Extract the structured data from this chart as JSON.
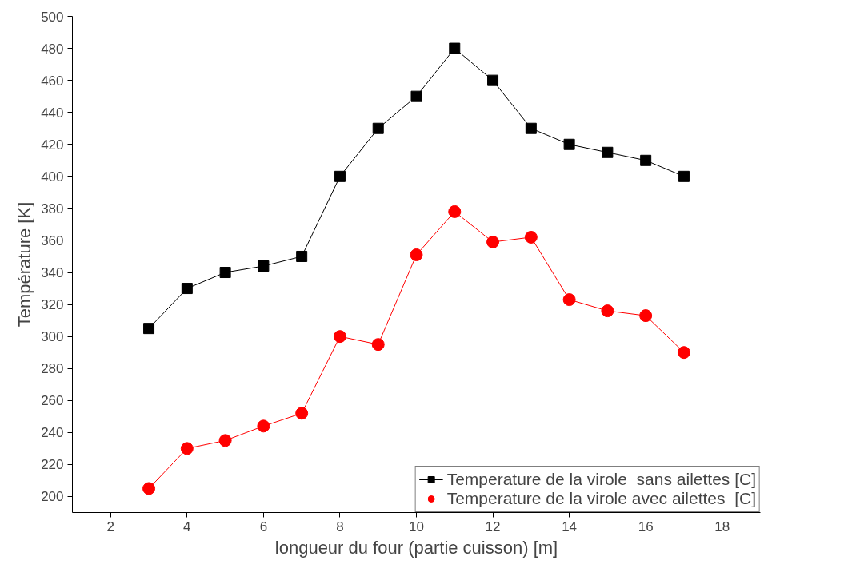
{
  "chart_data": {
    "type": "line",
    "xlabel": "longueur du four (partie cuisson) [m]",
    "ylabel": "Température [K]",
    "x": [
      3,
      4,
      5,
      6,
      7,
      8,
      9,
      10,
      11,
      12,
      13,
      14,
      15,
      16,
      17
    ],
    "series": [
      {
        "name": "Temperature de la virole  sans ailettes [C]",
        "color": "#000000",
        "marker": "square",
        "values": [
          305,
          330,
          340,
          344,
          350,
          400,
          430,
          450,
          480,
          460,
          430,
          420,
          415,
          410,
          400
        ]
      },
      {
        "name": "Temperature de la virole avec ailettes  [C]",
        "color": "#ff0000",
        "marker": "circle",
        "values": [
          205,
          230,
          235,
          244,
          252,
          300,
          295,
          351,
          378,
          359,
          362,
          323,
          316,
          313,
          290
        ]
      }
    ],
    "xlim": [
      1,
      19
    ],
    "xticks": [
      2,
      4,
      6,
      8,
      10,
      12,
      14,
      16,
      18
    ],
    "ylim": [
      190,
      500
    ],
    "yticks": [
      200,
      220,
      240,
      260,
      280,
      300,
      320,
      340,
      360,
      380,
      400,
      420,
      440,
      460,
      480,
      500
    ],
    "grid": false,
    "legend": "bottom right",
    "line_style": "solid"
  }
}
